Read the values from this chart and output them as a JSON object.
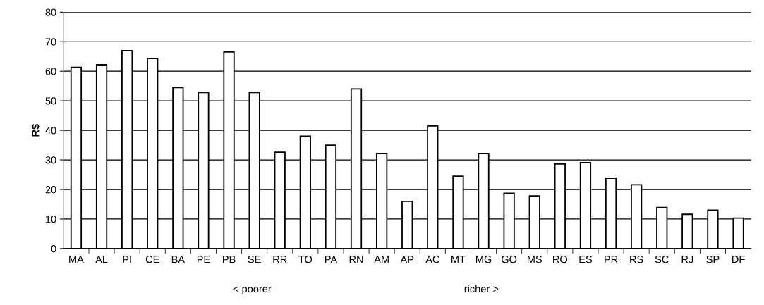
{
  "chart_data": {
    "type": "bar",
    "ylabel": "R$",
    "categories": [
      "MA",
      "AL",
      "PI",
      "CE",
      "BA",
      "PE",
      "PB",
      "SE",
      "RR",
      "TO",
      "PA",
      "RN",
      "AM",
      "AP",
      "AC",
      "MT",
      "MG",
      "GO",
      "MS",
      "RO",
      "ES",
      "PR",
      "RS",
      "SC",
      "RJ",
      "SP",
      "DF"
    ],
    "values": [
      61.3,
      62.2,
      67,
      64.3,
      54.5,
      52.8,
      66.5,
      52.8,
      32.6,
      38,
      35,
      54,
      32.2,
      16,
      41.5,
      24.5,
      32.2,
      18.7,
      17.8,
      28.6,
      29.1,
      23.8,
      21.6,
      13.9,
      11.6,
      13,
      10.3
    ],
    "color": "#ffffff",
    "ylim": [
      0,
      80
    ],
    "yticks": [
      0,
      10,
      20,
      30,
      40,
      50,
      60,
      70,
      80
    ],
    "grid": "y",
    "annotations": [
      "< poorer",
      "richer >"
    ]
  }
}
